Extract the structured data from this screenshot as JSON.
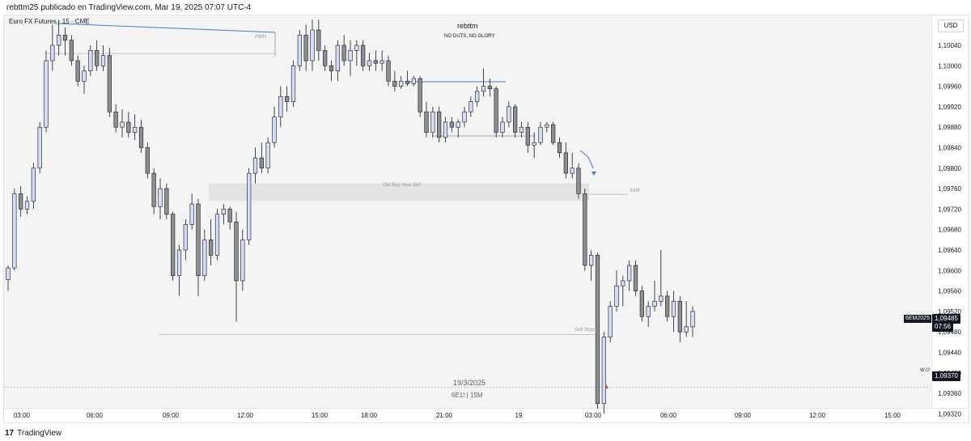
{
  "header": {
    "publisher_line": "rebttm25 publicado en TradingView.com, Mar 19, 2025 07:07 UTC-4"
  },
  "chart": {
    "symbol_title": "Euro FX Futures · 15 · CME",
    "currency": "USD",
    "watermark_user": "rebttm",
    "watermark_tagline": "NO GUTS, NO GLORY",
    "session_date": "19/3/2025",
    "session_symbol": "6E1! | 15M",
    "annotations": {
      "pwh": "PWH",
      "old_buy_new_sell": "Old Buy New Sell",
      "three_am": "3AM",
      "sell_stops": "Sell Stops",
      "wo": "W.O"
    },
    "last_price": {
      "symbol": "6EM2025",
      "price": "1,09485",
      "countdown": "07:56"
    },
    "marker_price": "1,09370",
    "colors": {
      "up": "#d5dcf3",
      "down": "#8f8f8f",
      "wick": "#131722",
      "blue_line": "#4a77c4",
      "zone": "#e3e3e3"
    }
  },
  "footer": {
    "brand": "TradingView",
    "logo": "17"
  },
  "chart_data": {
    "type": "candlestick",
    "title": "Euro FX Futures · 15 · CME",
    "price_axis_labels": [
      "1,10040",
      "1,10000",
      "1,09960",
      "1,09920",
      "1,09880",
      "1,09840",
      "1,09800",
      "1,09760",
      "1,09720",
      "1,09680",
      "1,09640",
      "1,09600",
      "1,09560",
      "1,09520",
      "1,09480",
      "1,09440",
      "1,09400",
      "1,09360",
      "1,09320"
    ],
    "time_axis_labels": [
      "03:00",
      "06:00",
      "09:00",
      "12:00",
      "15:00",
      "18:00",
      "21:00",
      "19",
      "03:00",
      "06:00",
      "09:00",
      "12:00",
      "15:00"
    ],
    "levels": [
      {
        "name": "PWH",
        "price": 1.10024
      },
      {
        "name": "Old Buy New Sell",
        "from": 1.0977,
        "to": 1.09736
      },
      {
        "name": "3AM",
        "price": 1.09749
      },
      {
        "name": "Sell Stops",
        "price": 1.09475
      },
      {
        "name": "W.O",
        "price": 1.09372
      }
    ],
    "ohlc": [
      [
        1.09582,
        1.0961,
        1.0956,
        1.09605
      ],
      [
        1.09605,
        1.0976,
        1.096,
        1.0975
      ],
      [
        1.0975,
        1.09765,
        1.09705,
        1.0972
      ],
      [
        1.0972,
        1.09745,
        1.0971,
        1.09735
      ],
      [
        1.09735,
        1.0981,
        1.0972,
        1.098
      ],
      [
        1.098,
        1.0989,
        1.0979,
        1.0988
      ],
      [
        1.0988,
        1.1003,
        1.0987,
        1.1001
      ],
      [
        1.1001,
        1.1008,
        1.0999,
        1.1004
      ],
      [
        1.1004,
        1.1009,
        1.1002,
        1.1006
      ],
      [
        1.1006,
        1.10075,
        1.1002,
        1.1005
      ],
      [
        1.1005,
        1.1006,
        1.1,
        1.1001
      ],
      [
        1.1001,
        1.1002,
        1.0996,
        1.0997
      ],
      [
        1.0997,
        1.1,
        1.09945,
        1.0999
      ],
      [
        1.0999,
        1.1004,
        1.0998,
        1.1003
      ],
      [
        1.1003,
        1.1005,
        1.0999,
        1.1
      ],
      [
        1.1,
        1.1004,
        1.0999,
        1.1002
      ],
      [
        1.1002,
        1.10035,
        1.099,
        1.0991
      ],
      [
        1.0991,
        1.09925,
        1.0987,
        1.0988
      ],
      [
        1.0988,
        1.09915,
        1.0986,
        1.0989
      ],
      [
        1.0989,
        1.0991,
        1.0986,
        1.0987
      ],
      [
        1.0987,
        1.09905,
        1.09855,
        1.0988
      ],
      [
        1.0988,
        1.09895,
        1.0983,
        1.0984
      ],
      [
        1.0984,
        1.0985,
        1.0978,
        1.0979
      ],
      [
        1.0979,
        1.098,
        1.0971,
        1.09725
      ],
      [
        1.09725,
        1.0978,
        1.097,
        1.0976
      ],
      [
        1.0976,
        1.0977,
        1.097,
        1.0971
      ],
      [
        1.0971,
        1.09715,
        1.0958,
        1.0959
      ],
      [
        1.0959,
        1.0965,
        1.0955,
        1.0964
      ],
      [
        1.0964,
        1.097,
        1.0962,
        1.0969
      ],
      [
        1.0969,
        1.0975,
        1.0968,
        1.0973
      ],
      [
        1.0973,
        1.0974,
        1.0955,
        1.0959
      ],
      [
        1.0959,
        1.0968,
        1.0958,
        1.0966
      ],
      [
        1.0966,
        1.097,
        1.0961,
        1.0963
      ],
      [
        1.0963,
        1.0972,
        1.0962,
        1.0971
      ],
      [
        1.0971,
        1.0973,
        1.0969,
        1.0972
      ],
      [
        1.0972,
        1.09725,
        1.0968,
        1.09695
      ],
      [
        1.09695,
        1.09715,
        1.095,
        1.0958
      ],
      [
        1.0958,
        1.0968,
        1.0956,
        1.0966
      ],
      [
        1.0966,
        1.098,
        1.0965,
        1.0979
      ],
      [
        1.0979,
        1.0984,
        1.0977,
        1.0982
      ],
      [
        1.0982,
        1.0985,
        1.0979,
        1.098
      ],
      [
        1.098,
        1.0986,
        1.0979,
        1.0985
      ],
      [
        1.0985,
        1.0992,
        1.0984,
        1.099
      ],
      [
        1.099,
        1.0996,
        1.0988,
        1.0994
      ],
      [
        1.0994,
        1.0996,
        1.0991,
        1.0993
      ],
      [
        1.0993,
        1.1001,
        1.0992,
        1.1
      ],
      [
        1.1,
        1.1007,
        1.0999,
        1.1006
      ],
      [
        1.1006,
        1.1008,
        1.0999,
        1.1001
      ],
      [
        1.1001,
        1.1009,
        1.0999,
        1.1007
      ],
      [
        1.1007,
        1.1009,
        1.1001,
        1.1003
      ],
      [
        1.1003,
        1.1004,
        1.0999,
        1.1
      ],
      [
        1.1,
        1.1001,
        1.0997,
        1.0999
      ],
      [
        1.0999,
        1.1005,
        1.0997,
        1.1004
      ],
      [
        1.1004,
        1.1006,
        1.1,
        1.1001
      ],
      [
        1.1001,
        1.1005,
        1.0998,
        1.1003
      ],
      [
        1.1003,
        1.1005,
        1.1,
        1.1004
      ],
      [
        1.1004,
        1.1005,
        1.0999,
        1.1
      ],
      [
        1.1,
        1.10025,
        1.0999,
        1.1001
      ],
      [
        1.1001,
        1.1003,
        1.0999,
        1.10005
      ],
      [
        1.10005,
        1.1003,
        1.0999,
        1.1001
      ],
      [
        1.1001,
        1.1002,
        1.0996,
        1.0997
      ],
      [
        1.0997,
        1.0999,
        1.0995,
        1.0996
      ],
      [
        1.0996,
        1.0998,
        1.09955,
        1.0997
      ],
      [
        1.0997,
        1.0999,
        1.0996,
        1.09965
      ],
      [
        1.09965,
        1.0998,
        1.0996,
        1.09975
      ],
      [
        1.09975,
        1.0998,
        1.099,
        1.0991
      ],
      [
        1.0991,
        1.0993,
        1.0986,
        1.0987
      ],
      [
        1.0987,
        1.0992,
        1.0986,
        1.0991
      ],
      [
        1.0991,
        1.0992,
        1.0985,
        1.0986
      ],
      [
        1.0986,
        1.099,
        1.0985,
        1.0989
      ],
      [
        1.0989,
        1.099,
        1.0987,
        1.0988
      ],
      [
        1.0988,
        1.09895,
        1.0986,
        1.0989
      ],
      [
        1.0989,
        1.0992,
        1.0988,
        1.0991
      ],
      [
        1.0991,
        1.0994,
        1.099,
        1.0993
      ],
      [
        1.0993,
        1.0996,
        1.0992,
        1.0995
      ],
      [
        1.0995,
        1.09995,
        1.0994,
        1.0996
      ],
      [
        1.0996,
        1.09975,
        1.0994,
        1.09955
      ],
      [
        1.09955,
        1.0996,
        1.0986,
        1.0987
      ],
      [
        1.0987,
        1.099,
        1.0986,
        1.0989
      ],
      [
        1.0989,
        1.0993,
        1.0988,
        1.0992
      ],
      [
        1.0992,
        1.09925,
        1.0986,
        1.0987
      ],
      [
        1.0987,
        1.0989,
        1.0986,
        1.0988
      ],
      [
        1.0988,
        1.0989,
        1.0983,
        1.09845
      ],
      [
        1.09845,
        1.0987,
        1.0982,
        1.0985
      ],
      [
        1.0985,
        1.0989,
        1.09845,
        1.0988
      ],
      [
        1.0988,
        1.0989,
        1.0987,
        1.09885
      ],
      [
        1.09885,
        1.0989,
        1.09845,
        1.0985
      ],
      [
        1.0985,
        1.0986,
        1.0982,
        1.0983
      ],
      [
        1.0983,
        1.0985,
        1.0978,
        1.0979
      ],
      [
        1.0979,
        1.0983,
        1.0978,
        1.098
      ],
      [
        1.098,
        1.0981,
        1.0974,
        1.0975
      ],
      [
        1.0975,
        1.0976,
        1.096,
        1.0961
      ],
      [
        1.0961,
        1.0964,
        1.0958,
        1.0963
      ],
      [
        1.0963,
        1.09635,
        1.0933,
        1.0934
      ],
      [
        1.0934,
        1.0948,
        1.0932,
        1.0947
      ],
      [
        1.0947,
        1.0954,
        1.0946,
        1.0953
      ],
      [
        1.0953,
        1.096,
        1.0952,
        1.0957
      ],
      [
        1.0957,
        1.0959,
        1.0953,
        1.0958
      ],
      [
        1.0958,
        1.0962,
        1.0956,
        1.0961
      ],
      [
        1.0961,
        1.0962,
        1.0955,
        1.0956
      ],
      [
        1.0956,
        1.0957,
        1.095,
        1.0951
      ],
      [
        1.0951,
        1.0954,
        1.0949,
        1.0953
      ],
      [
        1.0953,
        1.0958,
        1.0952,
        1.0954
      ],
      [
        1.0954,
        1.0964,
        1.0953,
        1.0955
      ],
      [
        1.0955,
        1.0956,
        1.095,
        1.0951
      ],
      [
        1.0951,
        1.0956,
        1.0948,
        1.0954
      ],
      [
        1.0954,
        1.0955,
        1.0946,
        1.0948
      ],
      [
        1.0948,
        1.0954,
        1.0947,
        1.0949
      ],
      [
        1.0949,
        1.0953,
        1.0947,
        1.0952
      ]
    ]
  }
}
